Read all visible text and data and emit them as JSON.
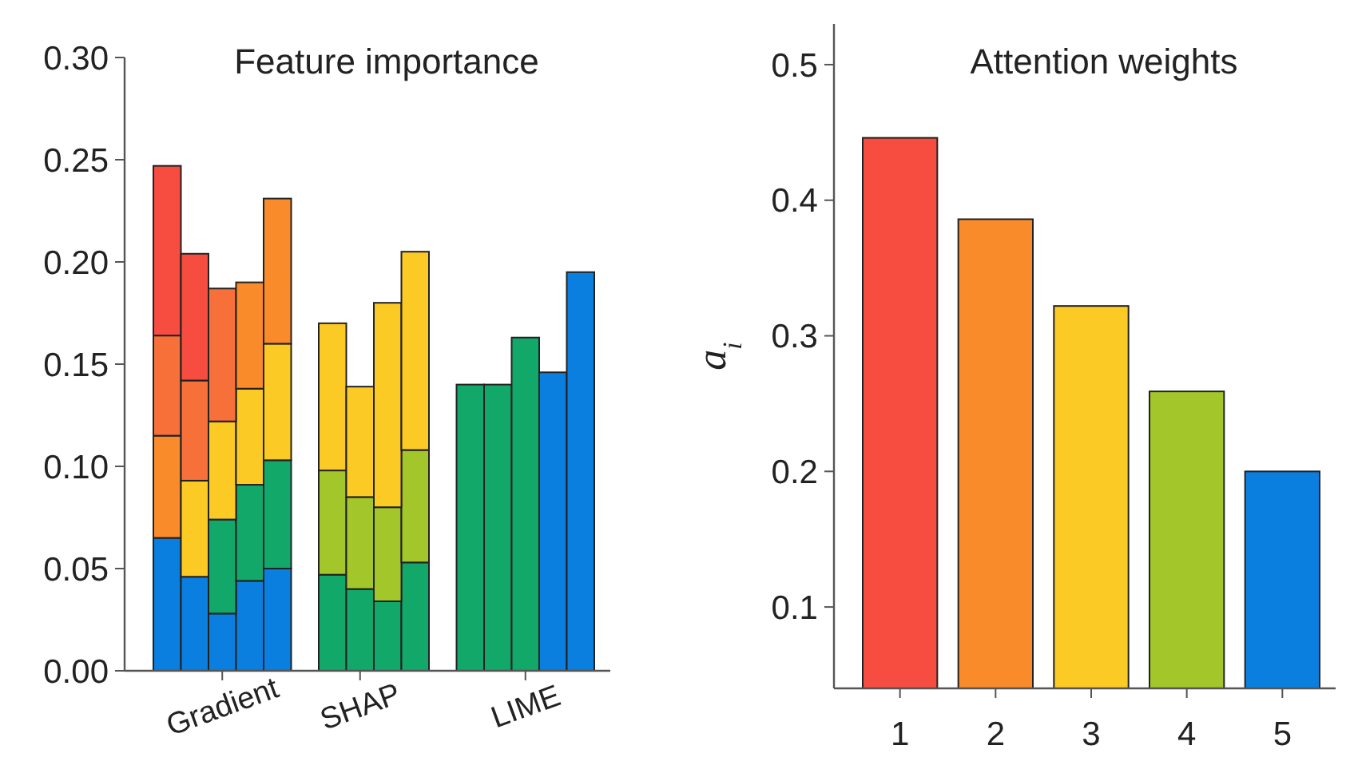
{
  "chart_data": [
    {
      "type": "bar",
      "title": "Feature importance",
      "stacked": true,
      "categories": [
        null,
        null,
        "Gradient",
        null,
        null,
        null,
        null,
        "SHAP",
        null,
        null,
        null,
        null,
        null,
        "LIME",
        null,
        null
      ],
      "series": [
        {
          "values": [
            0.065,
            0.046,
            0.028,
            0.044,
            0.05,
            null,
            0.047,
            0.04,
            0.034,
            0.053,
            null,
            0.14,
            0.14,
            0.163,
            0.146,
            0.195
          ],
          "colors": [
            "#0a7fe0",
            "#0a7fe0",
            "#0a7fe0",
            "#0a7fe0",
            "#0a7fe0",
            null,
            "#12a86a",
            "#12a86a",
            "#12a86a",
            "#12a86a",
            null,
            "#12a86a",
            "#12a86a",
            "#12a86a",
            "#0a7fe0",
            "#0a7fe0"
          ]
        },
        {
          "values": [
            0.05,
            0.047,
            0.046,
            0.047,
            0.053,
            null,
            0.051,
            0.045,
            0.046,
            0.055,
            null,
            null,
            null,
            null,
            null,
            null
          ],
          "colors": [
            "#f98b2a",
            "#fcca24",
            "#12a86a",
            "#12a86a",
            "#12a86a",
            null,
            "#a3c72a",
            "#a3c72a",
            "#a3c72a",
            "#a3c72a",
            null,
            null,
            null,
            null,
            null,
            null
          ]
        },
        {
          "values": [
            0.049,
            0.049,
            0.048,
            0.047,
            0.057,
            null,
            0.072,
            0.054,
            0.1,
            0.097,
            null,
            null,
            null,
            null,
            null,
            null
          ],
          "colors": [
            "#f7703a",
            "#f7703a",
            "#fcca24",
            "#fcca24",
            "#fcca24",
            null,
            "#fcca24",
            "#fcca24",
            "#fcca24",
            "#fcca24",
            null,
            null,
            null,
            null,
            null,
            null
          ]
        },
        {
          "values": [
            0.083,
            0.062,
            0.065,
            0.052,
            0.071,
            null,
            null,
            null,
            null,
            null,
            null,
            null,
            null,
            null,
            null,
            null
          ],
          "colors": [
            "#f74c40",
            "#f74c40",
            "#f7703a",
            "#f98b2a",
            "#f98b2a",
            null,
            null,
            null,
            null,
            null,
            null,
            null,
            null,
            null,
            null,
            null
          ]
        }
      ],
      "ylim": [
        0,
        0.3
      ],
      "yticks": [
        {
          "value": 0,
          "label": "0.00"
        },
        {
          "value": 0.05,
          "label": "0.05"
        },
        {
          "value": 0.1,
          "label": "0.10"
        },
        {
          "value": 0.15,
          "label": "0.15"
        },
        {
          "value": 0.2,
          "label": "0.20"
        },
        {
          "value": 0.25,
          "label": "0.25"
        },
        {
          "value": 0.3,
          "label": "0.30"
        }
      ],
      "grid": false
    },
    {
      "type": "bar",
      "title": "Attention weights",
      "ylabel": "a$_{i}$",
      "categories": [
        "1",
        "2",
        "3",
        "4",
        "5"
      ],
      "values": [
        0.446,
        0.386,
        0.322,
        0.259,
        0.2
      ],
      "colors": [
        "#f74c40",
        "#f98b2a",
        "#fcca24",
        "#a3c72a",
        "#0a7fe0"
      ],
      "ylim": [
        0.04,
        0.53
      ],
      "yticks": [
        0.1,
        0.2,
        0.3,
        0.4,
        0.5
      ],
      "grid": false
    }
  ]
}
